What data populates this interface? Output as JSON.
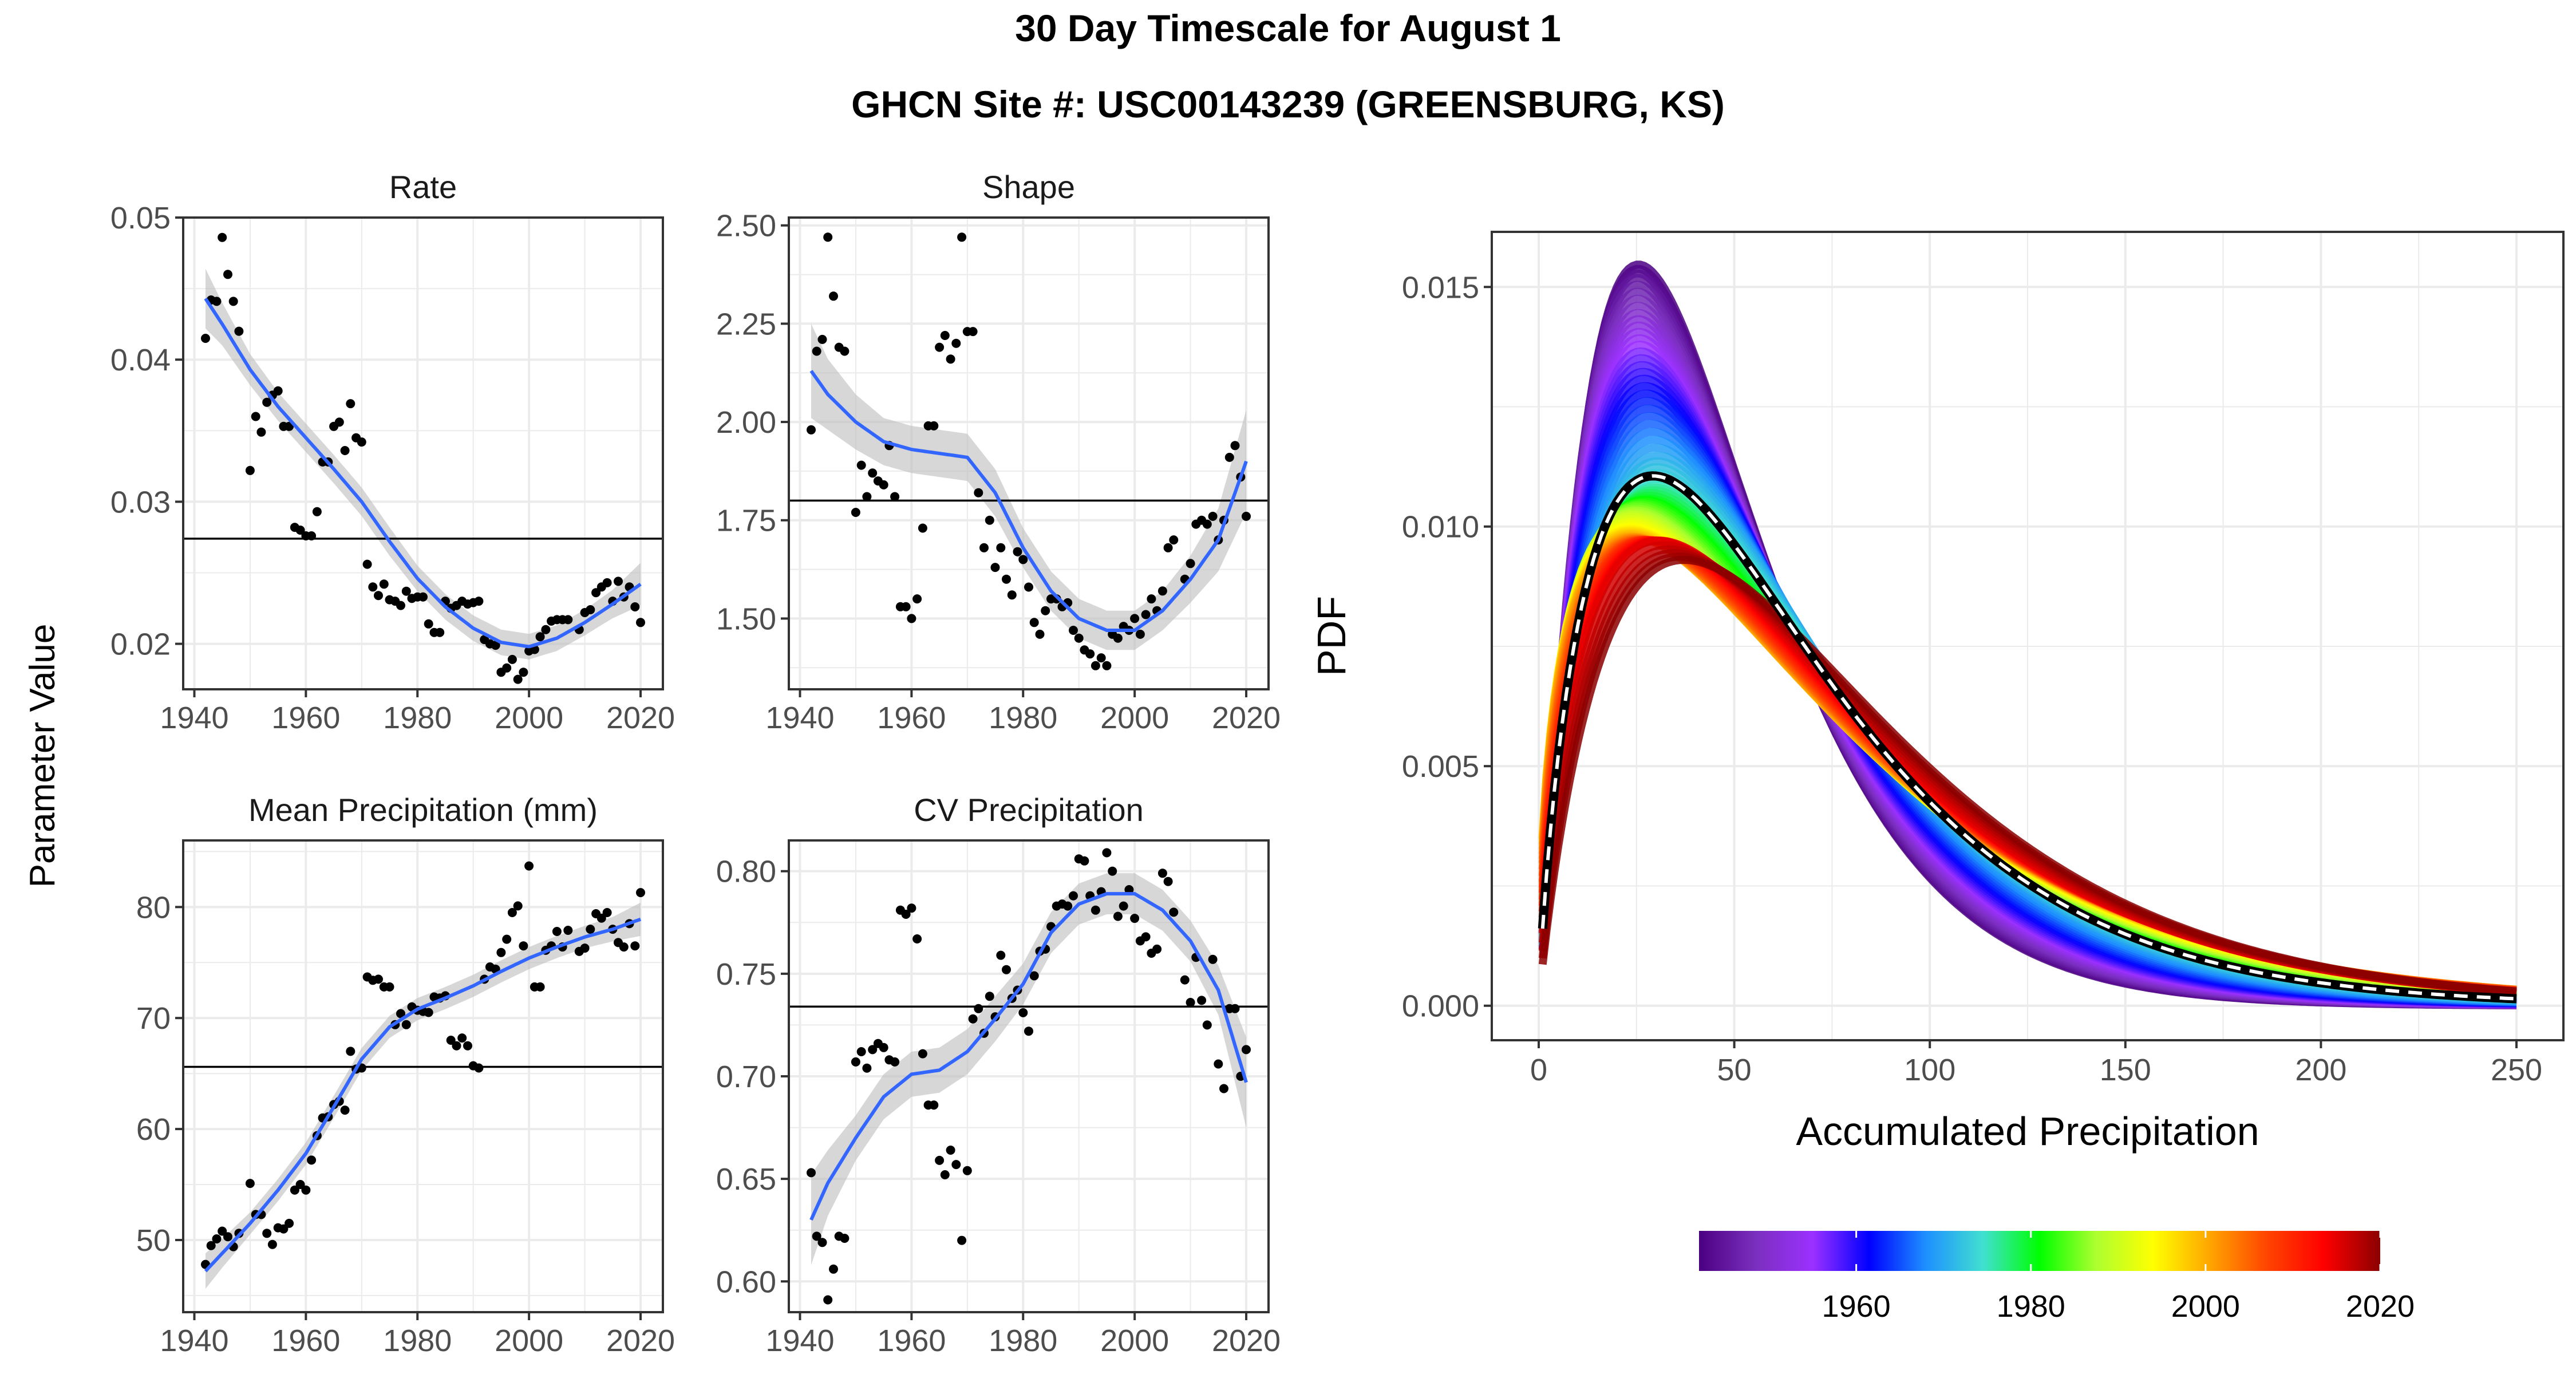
{
  "figure": {
    "title_line1": "30 Day Timescale for August 1",
    "title_line2": "GHCN Site #: USC00143239 (GREENSBURG, KS)",
    "left_ylabel": "Parameter Value"
  },
  "colors": {
    "points": "#000000",
    "smooth": "#3366FF",
    "ribbon": "#BDBDBD",
    "reference": "#000000",
    "grid": "#EBEBEB",
    "panel_border": "#333333",
    "overall_curve": "#000000",
    "overall_dash": "#FFFFFF"
  },
  "chart_data": [
    {
      "type": "scatter",
      "title": "Rate",
      "xlim": [
        1938,
        2024
      ],
      "ylim": [
        0.0168,
        0.05
      ],
      "xticks": [
        1940,
        1960,
        1980,
        2000,
        2020
      ],
      "yticks": [
        0.02,
        0.03,
        0.04,
        0.05
      ],
      "ytick_labels": [
        "0.02",
        "0.03",
        "0.04",
        "0.05"
      ],
      "hline": 0.0274,
      "points": {
        "x": [
          1942,
          1943,
          1944,
          1945,
          1946,
          1947,
          1948,
          1950,
          1951,
          1952,
          1953,
          1954,
          1955,
          1956,
          1957,
          1958,
          1959,
          1960,
          1961,
          1962,
          1963,
          1964,
          1965,
          1966,
          1967,
          1968,
          1969,
          1970,
          1971,
          1972,
          1973,
          1974,
          1975,
          1976,
          1977,
          1978,
          1979,
          1980,
          1981,
          1982,
          1983,
          1984,
          1985,
          1986,
          1987,
          1988,
          1989,
          1990,
          1991,
          1992,
          1993,
          1994,
          1995,
          1996,
          1997,
          1998,
          1999,
          2000,
          2001,
          2002,
          2003,
          2004,
          2005,
          2006,
          2007,
          2009,
          2010,
          2011,
          2012,
          2013,
          2014,
          2015,
          2016,
          2017,
          2018,
          2019,
          2020
        ],
        "y": [
          0.0415,
          0.0442,
          0.0441,
          0.0486,
          0.046,
          0.0441,
          0.042,
          0.0322,
          0.036,
          0.0349,
          0.037,
          0.0375,
          0.0378,
          0.0353,
          0.0353,
          0.0282,
          0.028,
          0.0276,
          0.0276,
          0.0293,
          0.0328,
          0.0328,
          0.0353,
          0.0356,
          0.0336,
          0.0369,
          0.0345,
          0.0342,
          0.0256,
          0.024,
          0.0234,
          0.0242,
          0.0231,
          0.023,
          0.0227,
          0.0237,
          0.0232,
          0.0233,
          0.0233,
          0.0214,
          0.0208,
          0.0208,
          0.023,
          0.0225,
          0.0227,
          0.023,
          0.0228,
          0.0229,
          0.023,
          0.0203,
          0.02,
          0.0199,
          0.018,
          0.0183,
          0.0189,
          0.0175,
          0.018,
          0.0195,
          0.0196,
          0.0205,
          0.021,
          0.0216,
          0.0217,
          0.0217,
          0.0217,
          0.021,
          0.0222,
          0.0224,
          0.0236,
          0.024,
          0.0243,
          0.023,
          0.0244,
          0.0233,
          0.024,
          0.0226,
          0.0215
        ]
      },
      "smooth": {
        "x": [
          1942,
          1945,
          1950,
          1955,
          1960,
          1965,
          1970,
          1975,
          1980,
          1985,
          1990,
          1995,
          2000,
          2005,
          2010,
          2015,
          2020
        ],
        "y": [
          0.0443,
          0.0425,
          0.0393,
          0.0367,
          0.0345,
          0.0323,
          0.03,
          0.0272,
          0.0246,
          0.0226,
          0.0211,
          0.0201,
          0.0198,
          0.0204,
          0.0215,
          0.0228,
          0.0242
        ],
        "band": [
          0.0021,
          0.0015,
          0.0011,
          0.001,
          0.001,
          0.001,
          0.001,
          0.001,
          0.0009,
          0.0009,
          0.0009,
          0.0009,
          0.0009,
          0.0009,
          0.0009,
          0.001,
          0.0015
        ]
      }
    },
    {
      "type": "scatter",
      "title": "Shape",
      "xlim": [
        1938,
        2024
      ],
      "ylim": [
        1.32,
        2.52
      ],
      "xticks": [
        1940,
        1960,
        1980,
        2000,
        2020
      ],
      "yticks": [
        1.5,
        1.75,
        2.0,
        2.25,
        2.5
      ],
      "ytick_labels": [
        "1.50",
        "1.75",
        "2.00",
        "2.25",
        "2.50"
      ],
      "hline": 1.8,
      "points": {
        "x": [
          1942,
          1943,
          1944,
          1945,
          1946,
          1947,
          1948,
          1950,
          1951,
          1952,
          1953,
          1954,
          1955,
          1956,
          1957,
          1958,
          1959,
          1960,
          1961,
          1962,
          1963,
          1964,
          1965,
          1966,
          1967,
          1968,
          1969,
          1970,
          1971,
          1972,
          1973,
          1974,
          1975,
          1976,
          1977,
          1978,
          1979,
          1980,
          1981,
          1982,
          1983,
          1984,
          1985,
          1986,
          1987,
          1988,
          1989,
          1990,
          1991,
          1992,
          1993,
          1994,
          1995,
          1996,
          1997,
          1998,
          1999,
          2000,
          2001,
          2002,
          2003,
          2004,
          2005,
          2006,
          2007,
          2009,
          2010,
          2011,
          2012,
          2013,
          2014,
          2015,
          2016,
          2017,
          2018,
          2019,
          2020
        ],
        "y": [
          1.98,
          2.18,
          2.21,
          2.47,
          2.32,
          2.19,
          2.18,
          1.77,
          1.89,
          1.81,
          1.87,
          1.85,
          1.84,
          1.94,
          1.81,
          1.53,
          1.53,
          1.5,
          1.55,
          1.73,
          1.99,
          1.99,
          2.19,
          2.22,
          2.16,
          2.2,
          2.47,
          2.23,
          2.23,
          1.82,
          1.68,
          1.75,
          1.63,
          1.68,
          1.6,
          1.56,
          1.67,
          1.65,
          1.58,
          1.49,
          1.46,
          1.52,
          1.55,
          1.55,
          1.53,
          1.54,
          1.47,
          1.45,
          1.42,
          1.41,
          1.38,
          1.4,
          1.38,
          1.46,
          1.45,
          1.48,
          1.47,
          1.5,
          1.46,
          1.51,
          1.55,
          1.52,
          1.57,
          1.68,
          1.7,
          1.6,
          1.64,
          1.74,
          1.75,
          1.74,
          1.76,
          1.7,
          1.75,
          1.91,
          1.94,
          1.86,
          1.76
        ]
      },
      "smooth": {
        "x": [
          1942,
          1945,
          1950,
          1955,
          1960,
          1965,
          1970,
          1975,
          1980,
          1985,
          1990,
          1995,
          2000,
          2005,
          2010,
          2015,
          2020
        ],
        "y": [
          2.13,
          2.07,
          2.0,
          1.95,
          1.93,
          1.92,
          1.91,
          1.82,
          1.68,
          1.57,
          1.5,
          1.47,
          1.47,
          1.52,
          1.6,
          1.7,
          1.9
        ],
        "band": [
          0.12,
          0.09,
          0.07,
          0.06,
          0.06,
          0.06,
          0.06,
          0.06,
          0.05,
          0.05,
          0.05,
          0.05,
          0.05,
          0.05,
          0.06,
          0.08,
          0.13
        ]
      }
    },
    {
      "type": "scatter",
      "title": "Mean Precipitation (mm)",
      "xlim": [
        1938,
        2024
      ],
      "ylim": [
        43.5,
        86.0
      ],
      "xticks": [
        1940,
        1960,
        1980,
        2000,
        2020
      ],
      "yticks": [
        50,
        60,
        70,
        80
      ],
      "ytick_labels": [
        "50",
        "60",
        "70",
        "80"
      ],
      "hline": 65.6,
      "points": {
        "x": [
          1942,
          1943,
          1944,
          1945,
          1946,
          1947,
          1948,
          1950,
          1951,
          1952,
          1953,
          1954,
          1955,
          1956,
          1957,
          1958,
          1959,
          1960,
          1961,
          1962,
          1963,
          1964,
          1965,
          1966,
          1967,
          1968,
          1969,
          1970,
          1971,
          1972,
          1973,
          1974,
          1975,
          1976,
          1977,
          1978,
          1979,
          1980,
          1981,
          1982,
          1983,
          1984,
          1985,
          1986,
          1987,
          1988,
          1989,
          1990,
          1991,
          1992,
          1993,
          1994,
          1995,
          1996,
          1997,
          1998,
          1999,
          2000,
          2001,
          2002,
          2003,
          2004,
          2005,
          2006,
          2007,
          2009,
          2010,
          2011,
          2012,
          2013,
          2014,
          2015,
          2016,
          2017,
          2018,
          2019,
          2020
        ],
        "y": [
          47.8,
          49.5,
          50.1,
          50.8,
          50.3,
          49.4,
          50.6,
          55.1,
          52.3,
          52.3,
          50.6,
          49.6,
          51.1,
          51.0,
          51.5,
          54.5,
          55.0,
          54.5,
          57.2,
          59.4,
          61.0,
          61.1,
          62.2,
          62.5,
          61.7,
          67.0,
          65.4,
          65.5,
          73.7,
          73.4,
          73.5,
          72.8,
          72.8,
          69.4,
          70.4,
          69.4,
          71.0,
          70.7,
          70.6,
          70.5,
          71.9,
          71.8,
          72.0,
          68.0,
          67.5,
          68.2,
          67.5,
          65.7,
          65.5,
          73.5,
          74.6,
          74.4,
          75.9,
          77.1,
          79.5,
          80.1,
          76.5,
          83.7,
          72.8,
          72.8,
          76.1,
          76.5,
          77.8,
          76.4,
          77.9,
          76.0,
          76.3,
          78.0,
          79.4,
          79.0,
          79.5,
          78.0,
          76.8,
          76.4,
          78.5,
          76.5,
          81.3
        ]
      },
      "smooth": {
        "x": [
          1942,
          1945,
          1950,
          1955,
          1960,
          1965,
          1970,
          1975,
          1980,
          1985,
          1990,
          1995,
          2000,
          2005,
          2010,
          2015,
          2020
        ],
        "y": [
          47.2,
          48.8,
          51.5,
          54.5,
          57.8,
          62.0,
          66.3,
          69.2,
          70.8,
          71.8,
          72.9,
          74.2,
          75.4,
          76.4,
          77.3,
          78.0,
          78.9
        ],
        "band": [
          1.6,
          1.3,
          1.0,
          1.0,
          1.0,
          1.0,
          1.0,
          1.0,
          1.0,
          1.0,
          1.0,
          1.0,
          1.0,
          1.0,
          1.0,
          1.1,
          1.5
        ]
      }
    },
    {
      "type": "scatter",
      "title": "CV Precipitation",
      "xlim": [
        1938,
        2024
      ],
      "ylim": [
        0.585,
        0.815
      ],
      "xticks": [
        1940,
        1960,
        1980,
        2000,
        2020
      ],
      "yticks": [
        0.6,
        0.65,
        0.7,
        0.75,
        0.8
      ],
      "ytick_labels": [
        "0.60",
        "0.65",
        "0.70",
        "0.75",
        "0.80"
      ],
      "hline": 0.734,
      "points": {
        "x": [
          1942,
          1943,
          1944,
          1945,
          1946,
          1947,
          1948,
          1950,
          1951,
          1952,
          1953,
          1954,
          1955,
          1956,
          1957,
          1958,
          1959,
          1960,
          1961,
          1962,
          1963,
          1964,
          1965,
          1966,
          1967,
          1968,
          1969,
          1970,
          1971,
          1972,
          1973,
          1974,
          1975,
          1976,
          1977,
          1978,
          1979,
          1980,
          1981,
          1982,
          1983,
          1984,
          1985,
          1986,
          1987,
          1988,
          1989,
          1990,
          1991,
          1992,
          1993,
          1994,
          1995,
          1996,
          1997,
          1998,
          1999,
          2000,
          2001,
          2002,
          2003,
          2004,
          2005,
          2006,
          2007,
          2009,
          2010,
          2011,
          2012,
          2013,
          2014,
          2015,
          2016,
          2017,
          2018,
          2019,
          2020
        ],
        "y": [
          0.653,
          0.622,
          0.619,
          0.591,
          0.606,
          0.622,
          0.621,
          0.707,
          0.712,
          0.704,
          0.713,
          0.716,
          0.714,
          0.708,
          0.707,
          0.781,
          0.779,
          0.782,
          0.767,
          0.711,
          0.686,
          0.686,
          0.659,
          0.652,
          0.664,
          0.657,
          0.62,
          0.654,
          0.728,
          0.733,
          0.721,
          0.739,
          0.729,
          0.759,
          0.752,
          0.738,
          0.742,
          0.731,
          0.722,
          0.749,
          0.761,
          0.762,
          0.773,
          0.783,
          0.784,
          0.783,
          0.788,
          0.806,
          0.805,
          0.788,
          0.781,
          0.79,
          0.809,
          0.8,
          0.778,
          0.783,
          0.791,
          0.777,
          0.766,
          0.768,
          0.76,
          0.762,
          0.799,
          0.795,
          0.78,
          0.747,
          0.736,
          0.758,
          0.737,
          0.725,
          0.757,
          0.706,
          0.694,
          0.733,
          0.733,
          0.7,
          0.713
        ]
      },
      "smooth": {
        "x": [
          1942,
          1945,
          1950,
          1955,
          1960,
          1965,
          1970,
          1975,
          1980,
          1985,
          1990,
          1995,
          2000,
          2005,
          2010,
          2015,
          2020
        ],
        "y": [
          0.63,
          0.648,
          0.67,
          0.69,
          0.701,
          0.703,
          0.712,
          0.728,
          0.745,
          0.77,
          0.784,
          0.789,
          0.789,
          0.781,
          0.766,
          0.742,
          0.697
        ],
        "band": [
          0.022,
          0.016,
          0.011,
          0.011,
          0.011,
          0.011,
          0.011,
          0.011,
          0.01,
          0.01,
          0.01,
          0.01,
          0.01,
          0.01,
          0.01,
          0.012,
          0.022
        ]
      }
    },
    {
      "type": "line",
      "title": "",
      "xlabel": "Accumulated Precipitation",
      "ylabel": "PDF",
      "xlim": [
        -12,
        262
      ],
      "ylim": [
        -0.00072,
        0.01615
      ],
      "xticks": [
        0,
        50,
        100,
        150,
        200,
        250
      ],
      "yticks": [
        0.0,
        0.005,
        0.01,
        0.015
      ],
      "ytick_labels": [
        "0.000",
        "0.005",
        "0.010",
        "0.015"
      ],
      "curve_x_range": [
        1,
        250
      ],
      "description_series": "one gamma PDF per year, coloured by year",
      "series_params": {
        "years_start": 1942,
        "years_end": 2020,
        "shape_by_year": "Shape panel smooth",
        "rate_by_year": "Rate panel smooth"
      },
      "overall": {
        "shape": 1.8,
        "rate": 0.0274
      },
      "colorbar": {
        "ticks": [
          1960,
          1980,
          2000,
          2020
        ],
        "range": [
          1942,
          2020
        ],
        "colors": [
          "#4B0082",
          "#7B2FBE",
          "#9B30FF",
          "#0000FF",
          "#1E90FF",
          "#40E0D0",
          "#00FF00",
          "#ADFF2F",
          "#FFFF00",
          "#FFA500",
          "#FF4500",
          "#FF0000",
          "#8B0000"
        ]
      }
    }
  ]
}
